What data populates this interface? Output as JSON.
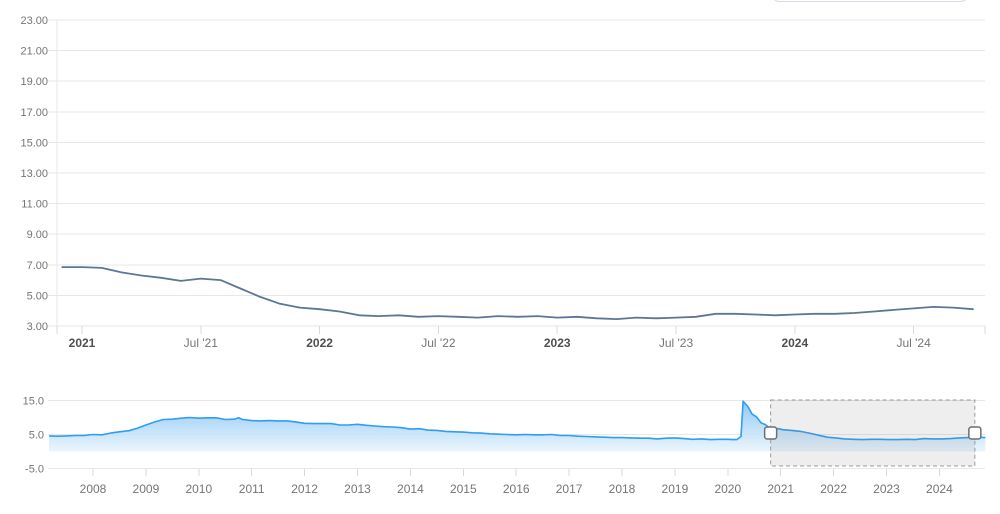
{
  "widget": {
    "description_visible_text_only": true,
    "partially_visible_control_label": ""
  },
  "colors": {
    "main_line": "#5a7796",
    "nav_line": "#2e9df2",
    "nav_area_top": "#85c4f5",
    "nav_area_bottom": "#e9f4fd",
    "grid": "#e7e7e7",
    "axis_line": "#e7e7e7",
    "tick": "#d9d9d9",
    "y_label": "#757575",
    "x_label_month": "#757575",
    "x_label_year": "#4f4f4f",
    "selection_fill": "rgba(125,125,125,0.13)",
    "selection_border": "#9a9a9a",
    "handle_fill": "#ffffff",
    "handle_stroke": "#6e6e6e",
    "cutoff_border": "#dadae4"
  },
  "chart_data": [
    {
      "type": "line",
      "role": "main-chart",
      "title": "",
      "xlabel": "",
      "ylabel": "",
      "grid": true,
      "legend": "none",
      "ylim": [
        3,
        23
      ],
      "y_tick_labels": [
        "23.00",
        "21.00",
        "19.00",
        "17.00",
        "15.00",
        "13.00",
        "11.00",
        "9.00",
        "7.00",
        "5.00",
        "3.00"
      ],
      "y_tick_values": [
        23,
        21,
        19,
        17,
        15,
        13,
        11,
        9,
        7,
        5,
        3
      ],
      "x_tick_labels": [
        "2021",
        "Jul '21",
        "2022",
        "Jul '22",
        "2023",
        "Jul '23",
        "2024",
        "Jul '24"
      ],
      "x_tick_month_index": [
        1,
        7,
        13,
        19,
        25,
        31,
        37,
        43
      ],
      "x": [
        "2020-12",
        "2021-01",
        "2021-02",
        "2021-03",
        "2021-04",
        "2021-05",
        "2021-06",
        "2021-07",
        "2021-08",
        "2021-09",
        "2021-10",
        "2021-11",
        "2021-12",
        "2022-01",
        "2022-02",
        "2022-03",
        "2022-04",
        "2022-05",
        "2022-06",
        "2022-07",
        "2022-08",
        "2022-09",
        "2022-10",
        "2022-11",
        "2022-12",
        "2023-01",
        "2023-02",
        "2023-03",
        "2023-04",
        "2023-05",
        "2023-06",
        "2023-07",
        "2023-08",
        "2023-09",
        "2023-10",
        "2023-11",
        "2023-12",
        "2024-01",
        "2024-02",
        "2024-03",
        "2024-04",
        "2024-05",
        "2024-06",
        "2024-07",
        "2024-08",
        "2024-09",
        "2024-10"
      ],
      "y": [
        6.85,
        6.85,
        6.8,
        6.5,
        6.3,
        6.15,
        5.95,
        6.1,
        6.0,
        5.45,
        4.9,
        4.45,
        4.2,
        4.1,
        3.95,
        3.7,
        3.65,
        3.7,
        3.6,
        3.65,
        3.6,
        3.55,
        3.65,
        3.6,
        3.65,
        3.55,
        3.6,
        3.5,
        3.45,
        3.55,
        3.5,
        3.55,
        3.6,
        3.8,
        3.8,
        3.75,
        3.7,
        3.75,
        3.8,
        3.8,
        3.85,
        3.95,
        4.05,
        4.15,
        4.25,
        4.2,
        4.1
      ]
    },
    {
      "type": "area",
      "role": "navigator",
      "title": "",
      "grid": true,
      "legend": "none",
      "ylim": [
        -5,
        15
      ],
      "y_tick_labels": [
        "15.0",
        "5.0",
        "-5.0"
      ],
      "y_tick_values": [
        15,
        5,
        -5
      ],
      "x_tick_labels": [
        "2008",
        "2009",
        "2010",
        "2011",
        "2012",
        "2013",
        "2014",
        "2015",
        "2016",
        "2017",
        "2018",
        "2019",
        "2020",
        "2021",
        "2022",
        "2023",
        "2024"
      ],
      "x_tick_values": [
        2008,
        2009,
        2010,
        2011,
        2012,
        2013,
        2014,
        2015,
        2016,
        2017,
        2018,
        2019,
        2020,
        2021,
        2022,
        2023,
        2024
      ],
      "baseline": 0,
      "points": [
        [
          2007.17,
          4.6
        ],
        [
          2007.33,
          4.5
        ],
        [
          2007.5,
          4.6
        ],
        [
          2007.67,
          4.7
        ],
        [
          2007.83,
          4.7
        ],
        [
          2008.0,
          5.0
        ],
        [
          2008.17,
          4.9
        ],
        [
          2008.33,
          5.4
        ],
        [
          2008.5,
          5.8
        ],
        [
          2008.67,
          6.1
        ],
        [
          2008.83,
          6.8
        ],
        [
          2009.0,
          7.8
        ],
        [
          2009.17,
          8.7
        ],
        [
          2009.33,
          9.4
        ],
        [
          2009.5,
          9.5
        ],
        [
          2009.67,
          9.8
        ],
        [
          2009.83,
          10.0
        ],
        [
          2010.0,
          9.8
        ],
        [
          2010.17,
          9.9
        ],
        [
          2010.33,
          9.9
        ],
        [
          2010.5,
          9.4
        ],
        [
          2010.67,
          9.5
        ],
        [
          2010.75,
          9.9
        ],
        [
          2010.83,
          9.4
        ],
        [
          2011.0,
          9.1
        ],
        [
          2011.17,
          9.0
        ],
        [
          2011.33,
          9.1
        ],
        [
          2011.5,
          9.0
        ],
        [
          2011.67,
          9.0
        ],
        [
          2011.83,
          8.7
        ],
        [
          2012.0,
          8.3
        ],
        [
          2012.17,
          8.2
        ],
        [
          2012.33,
          8.2
        ],
        [
          2012.5,
          8.2
        ],
        [
          2012.67,
          7.8
        ],
        [
          2012.83,
          7.8
        ],
        [
          2013.0,
          8.0
        ],
        [
          2013.17,
          7.7
        ],
        [
          2013.33,
          7.5
        ],
        [
          2013.5,
          7.3
        ],
        [
          2013.67,
          7.2
        ],
        [
          2013.83,
          7.0
        ],
        [
          2014.0,
          6.6
        ],
        [
          2014.17,
          6.7
        ],
        [
          2014.33,
          6.3
        ],
        [
          2014.5,
          6.2
        ],
        [
          2014.67,
          5.9
        ],
        [
          2014.83,
          5.8
        ],
        [
          2015.0,
          5.7
        ],
        [
          2015.17,
          5.5
        ],
        [
          2015.33,
          5.4
        ],
        [
          2015.5,
          5.2
        ],
        [
          2015.67,
          5.1
        ],
        [
          2015.83,
          5.0
        ],
        [
          2016.0,
          4.9
        ],
        [
          2016.17,
          5.0
        ],
        [
          2016.33,
          4.9
        ],
        [
          2016.5,
          4.9
        ],
        [
          2016.67,
          5.0
        ],
        [
          2016.83,
          4.7
        ],
        [
          2017.0,
          4.7
        ],
        [
          2017.17,
          4.5
        ],
        [
          2017.33,
          4.4
        ],
        [
          2017.5,
          4.3
        ],
        [
          2017.67,
          4.2
        ],
        [
          2017.83,
          4.1
        ],
        [
          2018.0,
          4.1
        ],
        [
          2018.17,
          4.0
        ],
        [
          2018.33,
          3.9
        ],
        [
          2018.5,
          3.9
        ],
        [
          2018.67,
          3.7
        ],
        [
          2018.83,
          3.9
        ],
        [
          2019.0,
          4.0
        ],
        [
          2019.17,
          3.8
        ],
        [
          2019.33,
          3.6
        ],
        [
          2019.5,
          3.7
        ],
        [
          2019.67,
          3.5
        ],
        [
          2019.83,
          3.6
        ],
        [
          2020.0,
          3.6
        ],
        [
          2020.08,
          3.5
        ],
        [
          2020.17,
          3.5
        ],
        [
          2020.25,
          4.4
        ],
        [
          2020.29,
          14.8
        ],
        [
          2020.38,
          13.2
        ],
        [
          2020.46,
          11.0
        ],
        [
          2020.54,
          10.2
        ],
        [
          2020.63,
          8.4
        ],
        [
          2020.71,
          7.9
        ],
        [
          2020.79,
          6.9
        ],
        [
          2020.88,
          6.7
        ],
        [
          2020.96,
          6.7
        ],
        [
          2021.04,
          6.4
        ],
        [
          2021.21,
          6.2
        ],
        [
          2021.38,
          5.9
        ],
        [
          2021.54,
          5.4
        ],
        [
          2021.71,
          4.8
        ],
        [
          2021.88,
          4.2
        ],
        [
          2022.04,
          4.0
        ],
        [
          2022.21,
          3.7
        ],
        [
          2022.38,
          3.6
        ],
        [
          2022.54,
          3.5
        ],
        [
          2022.71,
          3.6
        ],
        [
          2022.88,
          3.6
        ],
        [
          2023.04,
          3.5
        ],
        [
          2023.21,
          3.5
        ],
        [
          2023.38,
          3.6
        ],
        [
          2023.54,
          3.5
        ],
        [
          2023.71,
          3.8
        ],
        [
          2023.88,
          3.7
        ],
        [
          2024.04,
          3.7
        ],
        [
          2024.21,
          3.8
        ],
        [
          2024.38,
          4.0
        ],
        [
          2024.54,
          4.1
        ],
        [
          2024.71,
          4.2
        ],
        [
          2024.87,
          4.1
        ]
      ],
      "selection": {
        "from_x": 2020.81,
        "to_x": 2024.67
      }
    }
  ]
}
